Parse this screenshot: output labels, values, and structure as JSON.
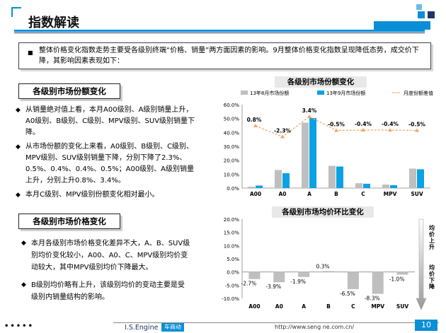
{
  "header": {
    "title": "指数解读"
  },
  "summary": "整体价格变化指数走势主要受各级别终端“价格、销量”两方面因素的影响。9月整体价格变化指数呈现降低态势，成交价下降，其影响因素表现如下：",
  "section1": {
    "heading": "各级别市场份额变化",
    "bullets": [
      "从销量绝对值上看，本月A00级别、A级别销量上升，A0级别、B级别、C级别、MPV级别、SUV级别销量下降。",
      "从市场份额的变化上来看，A0级别、B级别、C级别、MPV级别、SUV级别销量下降，分别下降了2.3%、0.5%、0.4%、0.4%、0.5%；A00级别、A级别销量上升，分别上升0.8%、3.4%。",
      "本月C级别、MPV级别份额变化相对最小。"
    ]
  },
  "section2": {
    "heading": "各级别市场价格变化",
    "bullets": [
      "本月各级别市场价格变化差异不大，A、B、SUV级别均价变化较小，A00、A0、C、MPV级别均价变动较大，其中MPV级别均价下降最大。",
      "B级别均价略有上升，该级别均价的变动主要是受级别内销量结构的影响。"
    ]
  },
  "side_labels": {
    "up": "均价上升",
    "down": "均价下降"
  },
  "colors": {
    "accent": "#0a8fd6",
    "navy": "#1f3764",
    "series_aug": "#bfbfbf",
    "series_sep": "#0aa2e3",
    "trend": "#f4a460"
  },
  "chart_data": [
    {
      "type": "bar",
      "title": "各级别市场份额变化",
      "categories": [
        "A00",
        "A0",
        "A",
        "B",
        "C",
        "MPV",
        "SUV"
      ],
      "series": [
        {
          "name": "13年8月市场份额",
          "values": [
            1.0,
            13.0,
            47.0,
            16.0,
            3.5,
            2.5,
            14.0
          ]
        },
        {
          "name": "13年9月市场份额",
          "values": [
            1.8,
            10.7,
            50.4,
            15.5,
            3.1,
            2.1,
            13.5
          ]
        }
      ],
      "line_series": {
        "name": "月度份额差值",
        "values": [
          0.8,
          -2.3,
          3.4,
          -0.5,
          -0.4,
          -0.4,
          -0.5
        ],
        "labels": [
          "0.8%",
          "-2.3%",
          "3.4%",
          "-0.5%",
          "-0.4%",
          "-0.4%",
          "-0.5%"
        ]
      },
      "y_ticks": [
        "0.0%",
        "10.0%",
        "20.0%",
        "30.0%",
        "40.0%",
        "50.0%",
        "60.0%"
      ],
      "ylim": [
        0,
        60
      ]
    },
    {
      "type": "bar",
      "title": "各级别市场均价环比变化",
      "categories": [
        "A00",
        "A0",
        "A",
        "B",
        "C",
        "MPV",
        "SUV"
      ],
      "values": [
        -2.7,
        -3.9,
        -1.9,
        0.3,
        -6.5,
        -8.3,
        -1.0
      ],
      "labels": [
        "-2.7%",
        "-3.9%",
        "-1.9%",
        "0.3%",
        "-6.5%",
        "-8.3%",
        "-1.0%"
      ],
      "y_ticks": [
        "20.0%",
        "15.0%",
        "10.0%",
        "5.0%",
        "0.0%",
        "-5.0%",
        "-10.0%"
      ],
      "ylim": [
        -10,
        20
      ]
    }
  ],
  "footer": {
    "dots": "•••••",
    "brand": "I.S.Engine",
    "badge": "车商动",
    "url": "http://www.seng ne.com.cn/",
    "page": "10"
  }
}
